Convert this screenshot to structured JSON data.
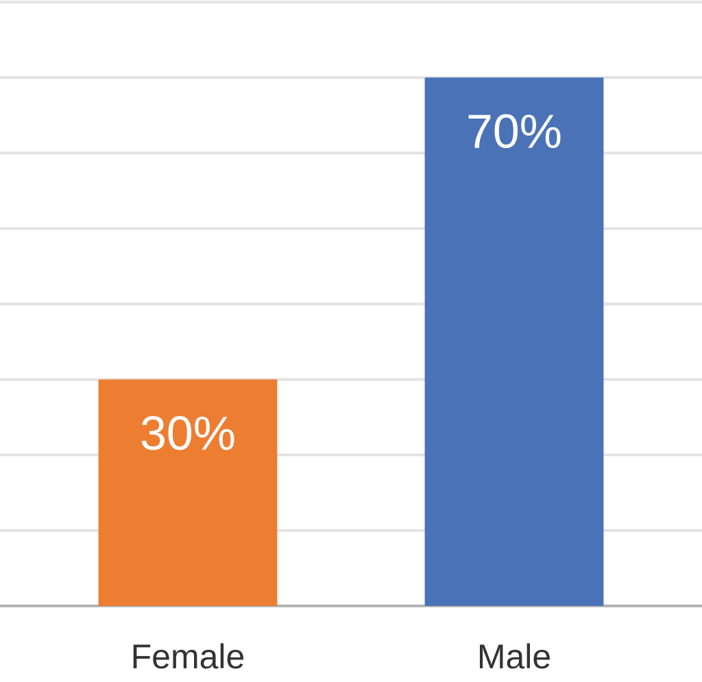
{
  "chart_data": {
    "type": "bar",
    "categories": [
      "Female",
      "Male"
    ],
    "values": [
      30,
      70
    ],
    "value_labels": [
      "30%",
      "70%"
    ],
    "colors": [
      "#ed7d31",
      "#4a72b6"
    ],
    "ylim": [
      0,
      80
    ],
    "yticks": [
      0,
      10,
      20,
      30,
      40,
      50,
      60,
      70,
      80
    ],
    "grid": true
  }
}
